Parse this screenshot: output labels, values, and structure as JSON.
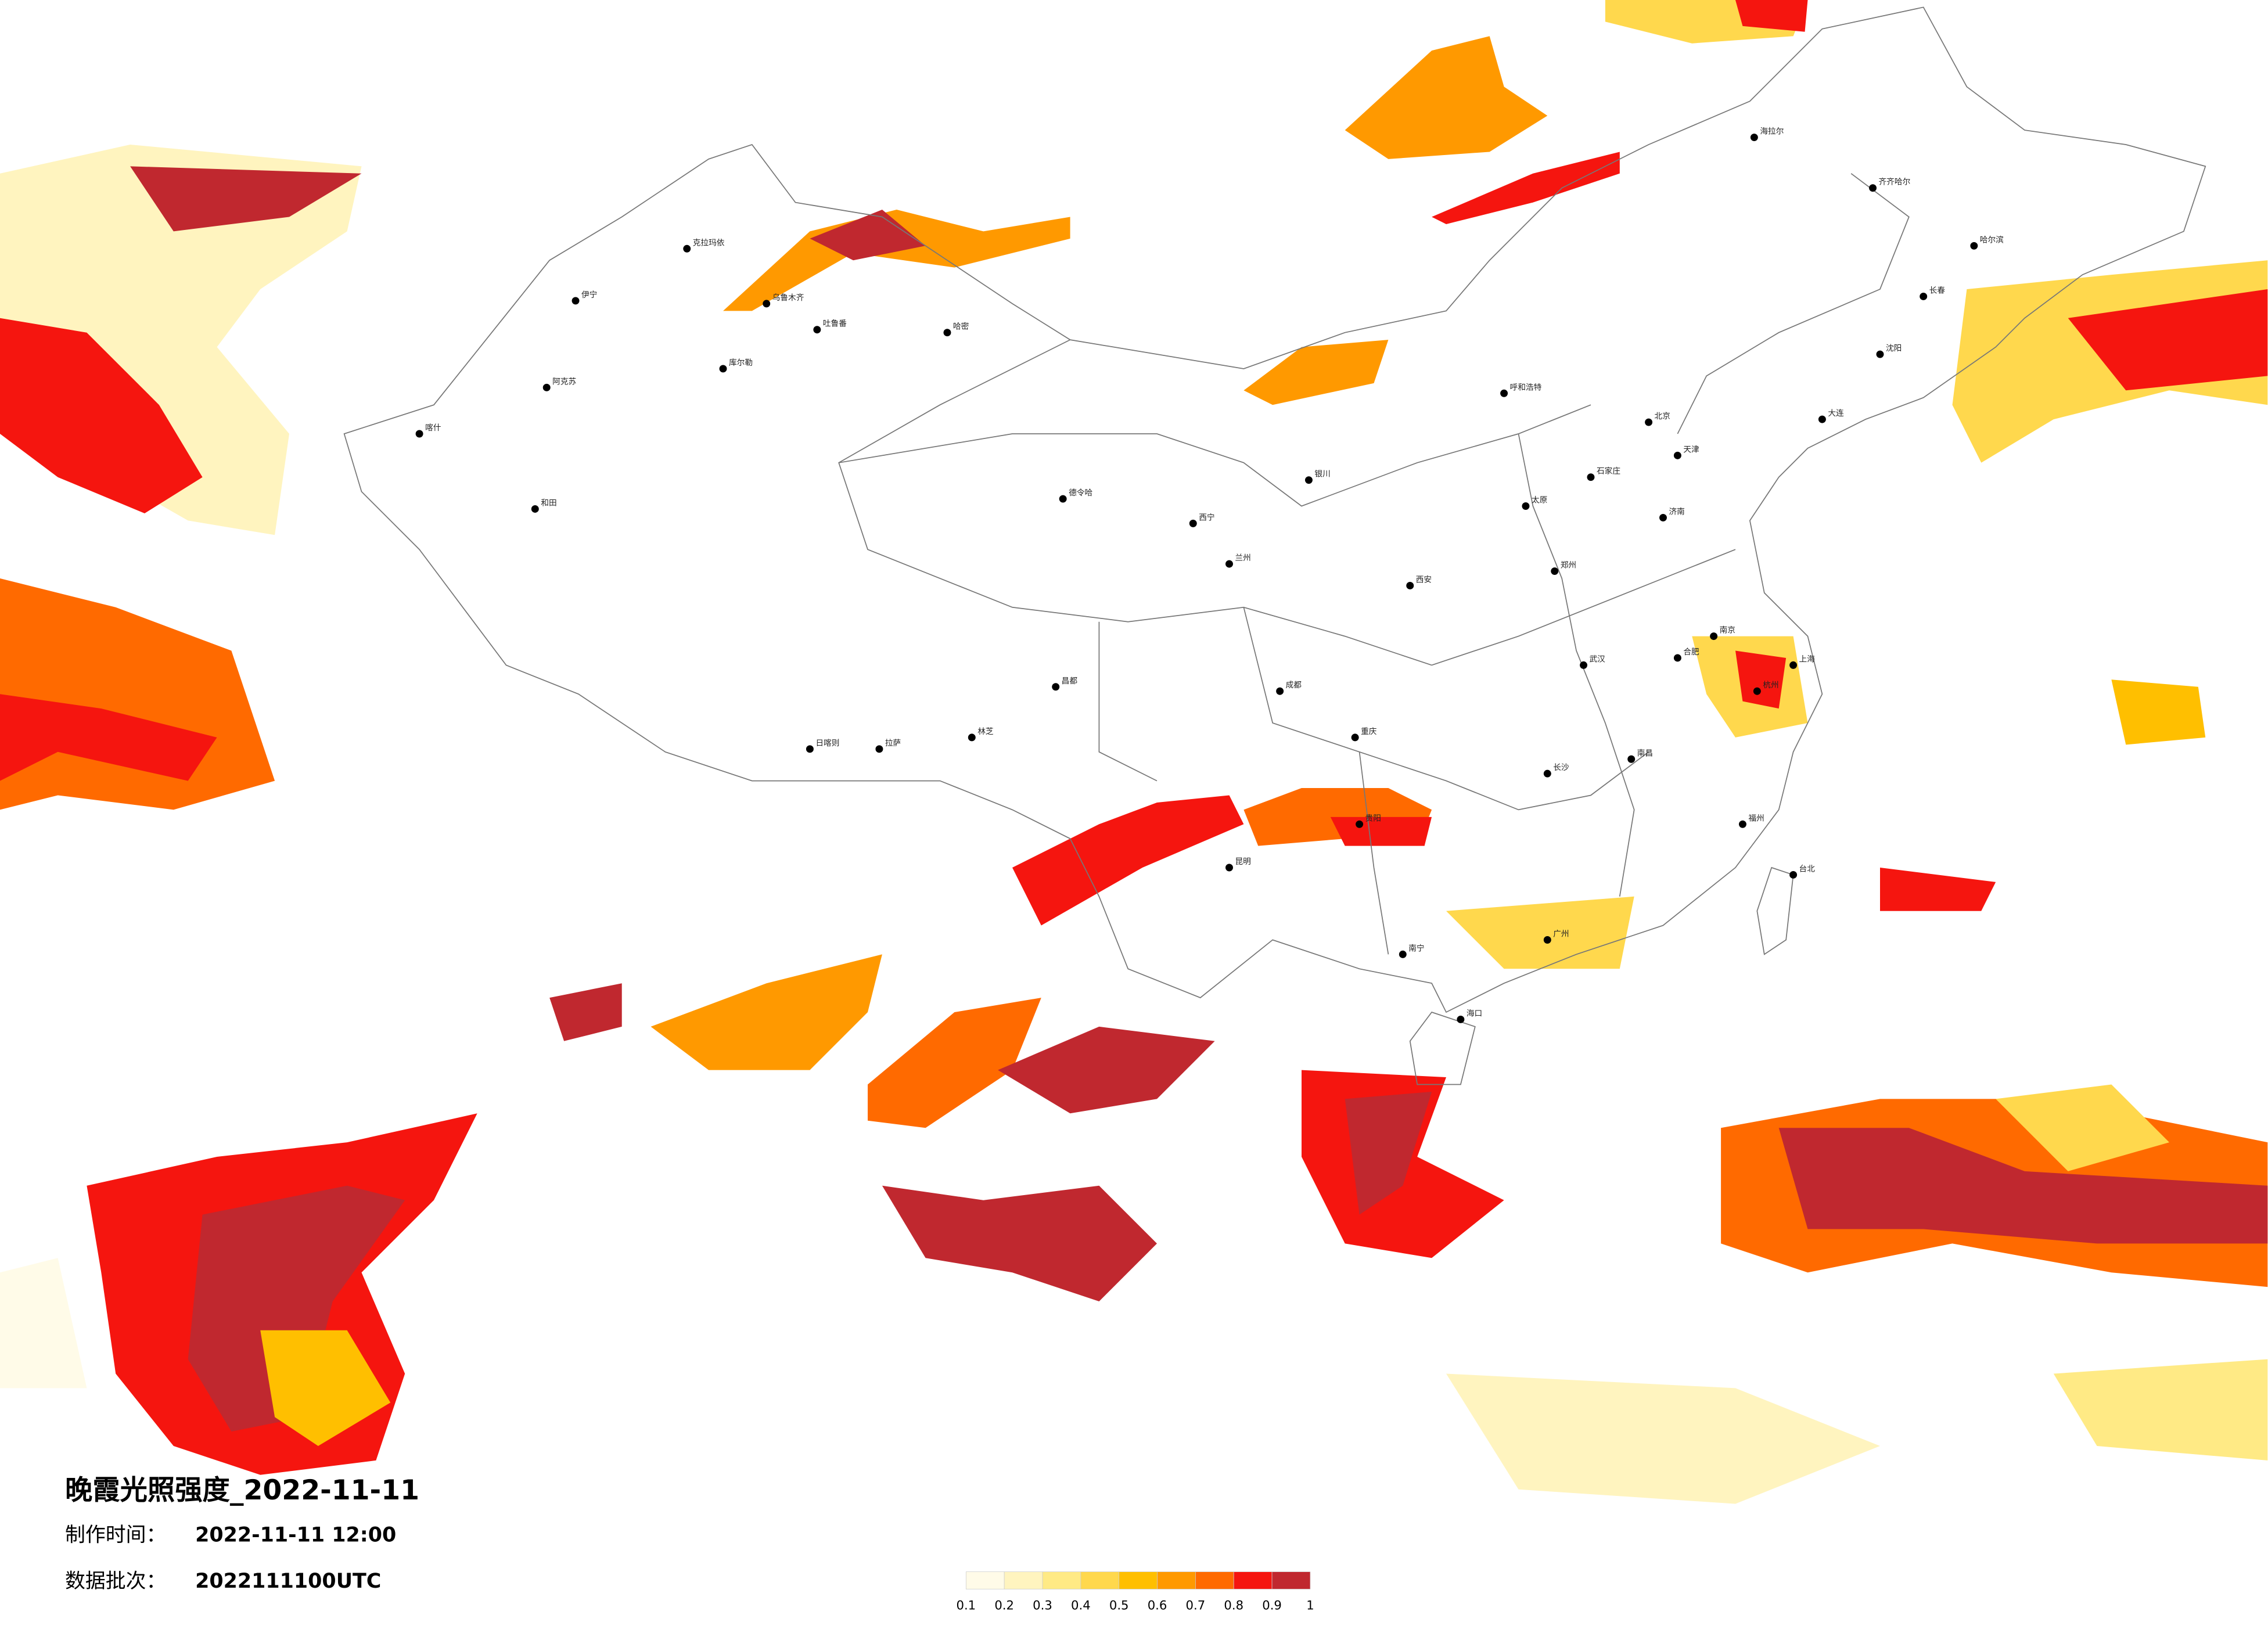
{
  "title": "晚霞光照强度_2022-11-11",
  "made_label": "制作时间：",
  "made_time": "2022-11-11 12:00",
  "batch_label": "数据批次：",
  "batch": "2022111100UTC",
  "colorbar": {
    "ticks": [
      0.1,
      0.2,
      0.3,
      0.4,
      0.5,
      0.6,
      0.7,
      0.8,
      0.9,
      1
    ],
    "colors": [
      "#fffbe8",
      "#fff4bf",
      "#ffea85",
      "#ffd84d",
      "#ffbf00",
      "#ff9900",
      "#ff6a00",
      "#f5150f",
      "#c0282f"
    ]
  },
  "cities": [
    "克拉玛依",
    "乌鲁木齐",
    "吐鲁番",
    "哈密",
    "库尔勒",
    "阿克苏",
    "喀什",
    "和田",
    "伊宁",
    "德令哈",
    "拉萨",
    "日喀则",
    "林芝",
    "昌都",
    "西宁",
    "兰州",
    "银川",
    "呼和浩特",
    "北京",
    "天津",
    "石家庄",
    "太原",
    "济南",
    "西安",
    "郑州",
    "成都",
    "重庆",
    "武汉",
    "长沙",
    "南昌",
    "合肥",
    "南京",
    "上海",
    "杭州",
    "福州",
    "台北",
    "广州",
    "南宁",
    "海口",
    "贵阳",
    "昆明",
    "哈尔滨",
    "长春",
    "沈阳",
    "大连",
    "海拉尔",
    "齐齐哈尔"
  ]
}
